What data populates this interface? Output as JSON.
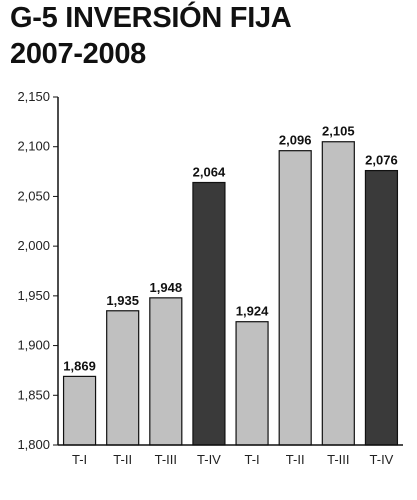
{
  "header": {
    "title_line1": "G-5 INVERSIÓN FIJA",
    "title_line2": "2007-2008"
  },
  "chart_data": {
    "type": "bar",
    "title": "G-5 INVERSIÓN FIJA 2007-2008",
    "xlabel": "",
    "ylabel": "",
    "categories": [
      "T-I",
      "T-II",
      "T-III",
      "T-IV",
      "T-I",
      "T-II",
      "T-III",
      "T-IV"
    ],
    "values": [
      1869,
      1935,
      1948,
      2064,
      1924,
      2096,
      2105,
      2076
    ],
    "value_labels": [
      "1,869",
      "1,935",
      "1,948",
      "2,064",
      "1,924",
      "2,096",
      "2,105",
      "2,076"
    ],
    "ylim": [
      1800,
      2150
    ],
    "yticks": [
      1800,
      1850,
      1900,
      1950,
      2000,
      2050,
      2100,
      2150
    ],
    "ytick_labels": [
      "1,800",
      "1,850",
      "1,900",
      "1,950",
      "2,000",
      "2,050",
      "2,100",
      "2,150"
    ],
    "grid": false,
    "colors": {
      "regular_bar": "#c0c0c0",
      "highlight_bar": "#3a3a3a",
      "bar_outline": "#111111",
      "axis": "#111111"
    },
    "highlighted_categories": [
      3,
      7
    ]
  }
}
